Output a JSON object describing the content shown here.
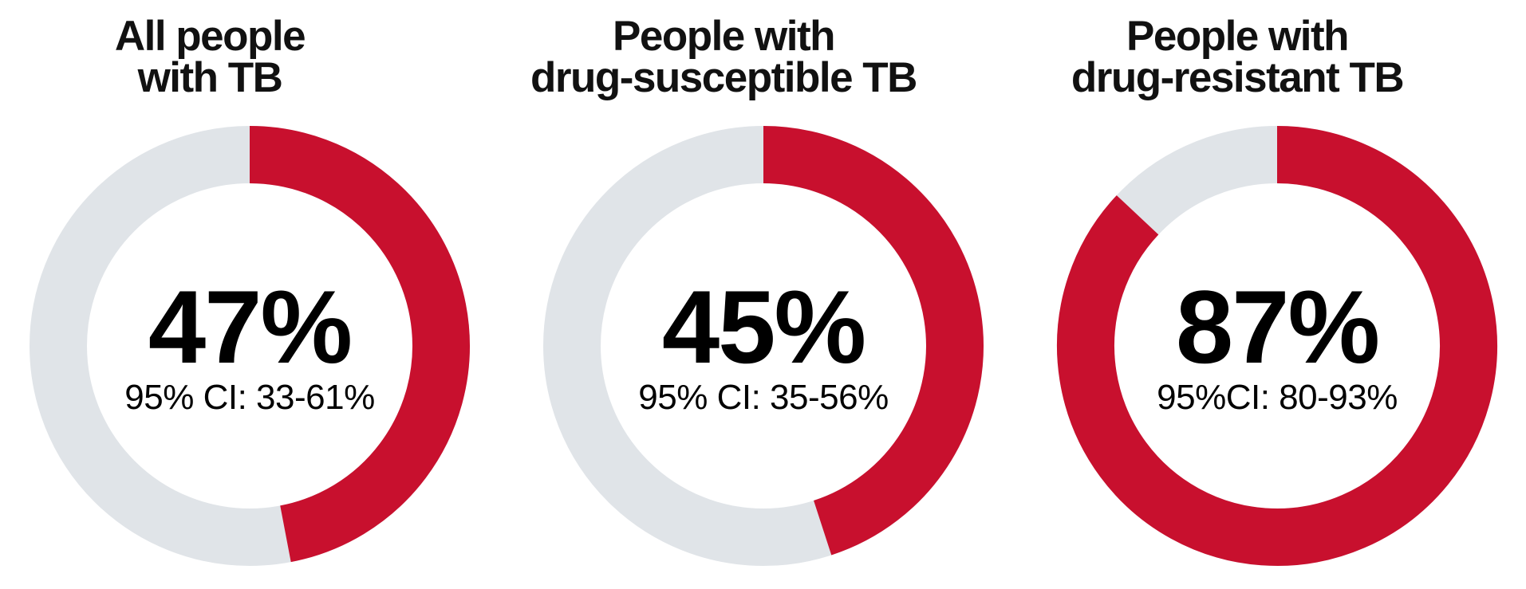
{
  "page": {
    "background_color": "#FFFFFF"
  },
  "chart_data": {
    "type": "pie",
    "subtype": "donut",
    "unit": "percent",
    "arc_start": "top",
    "arc_direction": "clockwise",
    "legend": "none",
    "colors": {
      "value_arc": "#C8102E",
      "remainder_arc": "#E0E4E8",
      "text": "#000000"
    },
    "charts": [
      {
        "title": "All people with TB",
        "title_line1": "All people",
        "title_line2": "with TB",
        "value_pct": 47,
        "value_label": "47%",
        "ci_label": "95% CI: 33-61%",
        "ci_low_pct": 33,
        "ci_high_pct": 61
      },
      {
        "title": "People with drug-susceptible TB",
        "title_line1": "People with",
        "title_line2": "drug-susceptible TB",
        "value_pct": 45,
        "value_label": "45%",
        "ci_label": "95% CI: 35-56%",
        "ci_low_pct": 35,
        "ci_high_pct": 56
      },
      {
        "title": "People with drug-resistant TB",
        "title_line1": "People with",
        "title_line2": "drug-resistant TB",
        "value_pct": 87,
        "value_label": "87%",
        "ci_label": "95%CI: 80-93%",
        "ci_low_pct": 80,
        "ci_high_pct": 93
      }
    ]
  }
}
